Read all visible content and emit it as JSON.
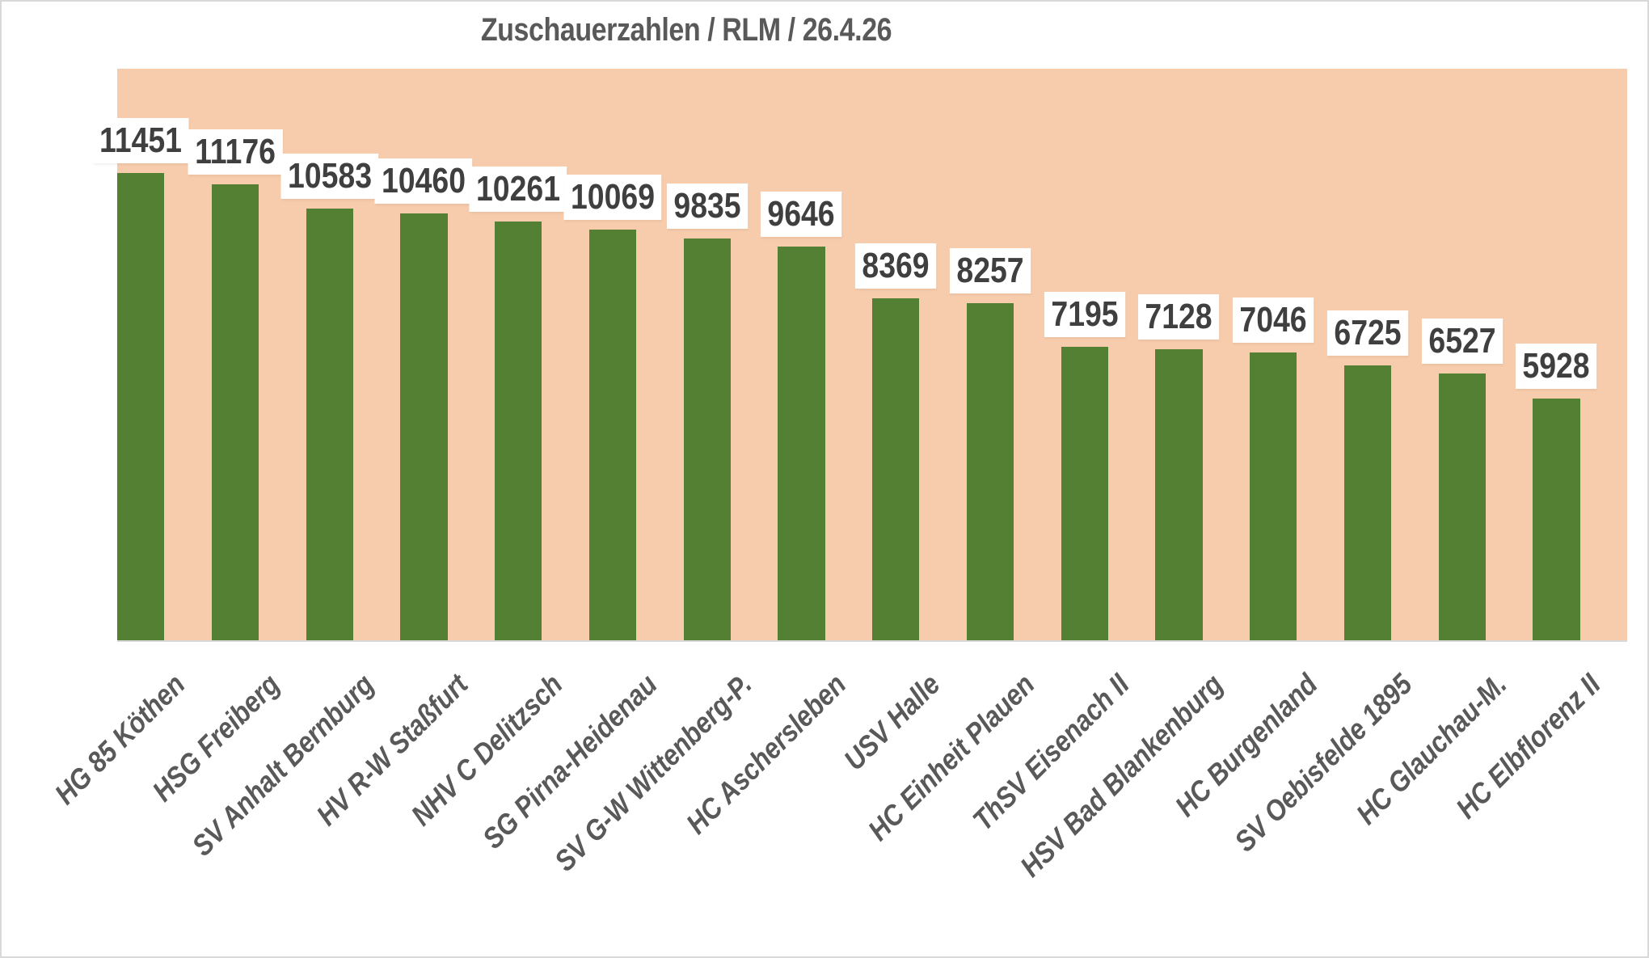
{
  "title": "Zuschauerzahlen / RLM / 26.4.26",
  "chart_data": {
    "type": "bar",
    "title": "Zuschauerzahlen / RLM / 26.4.26",
    "categories": [
      "HG 85 Köthen",
      "HSG Freiberg",
      "SV Anhalt Bernburg",
      "HV R-W Staßfurt",
      "NHV C Delitzsch",
      "SG Pirna-Heidenau",
      "SV G-W Wittenberg-P.",
      "HC Aschersleben",
      "USV Halle",
      "HC Einheit Plauen",
      "ThSV Eisenach II",
      "HSV Bad Blankenburg",
      "HC Burgenland",
      "SV Oebisfelde 1895",
      "HC Glauchau-M.",
      "HC Elbflorenz II"
    ],
    "values": [
      11451,
      11176,
      10583,
      10460,
      10261,
      10069,
      9835,
      9646,
      8369,
      8257,
      7195,
      7128,
      7046,
      6725,
      6527,
      5928
    ],
    "value_labels_shown": true,
    "xlabel": "",
    "ylabel": "",
    "ylim": [
      0,
      14000
    ],
    "grid": false,
    "legend": false,
    "x_tick_rotation_deg": 45,
    "colors": {
      "bar": "#538032",
      "plot_background": "#F7CCAD",
      "chart_background": "#FFFFFF",
      "value_label_text": "#3F3F3F",
      "value_label_background": "#FFFFFF",
      "category_label_text": "#595959",
      "title_text": "#595959",
      "border_and_axis": "#D9D9D9"
    }
  }
}
